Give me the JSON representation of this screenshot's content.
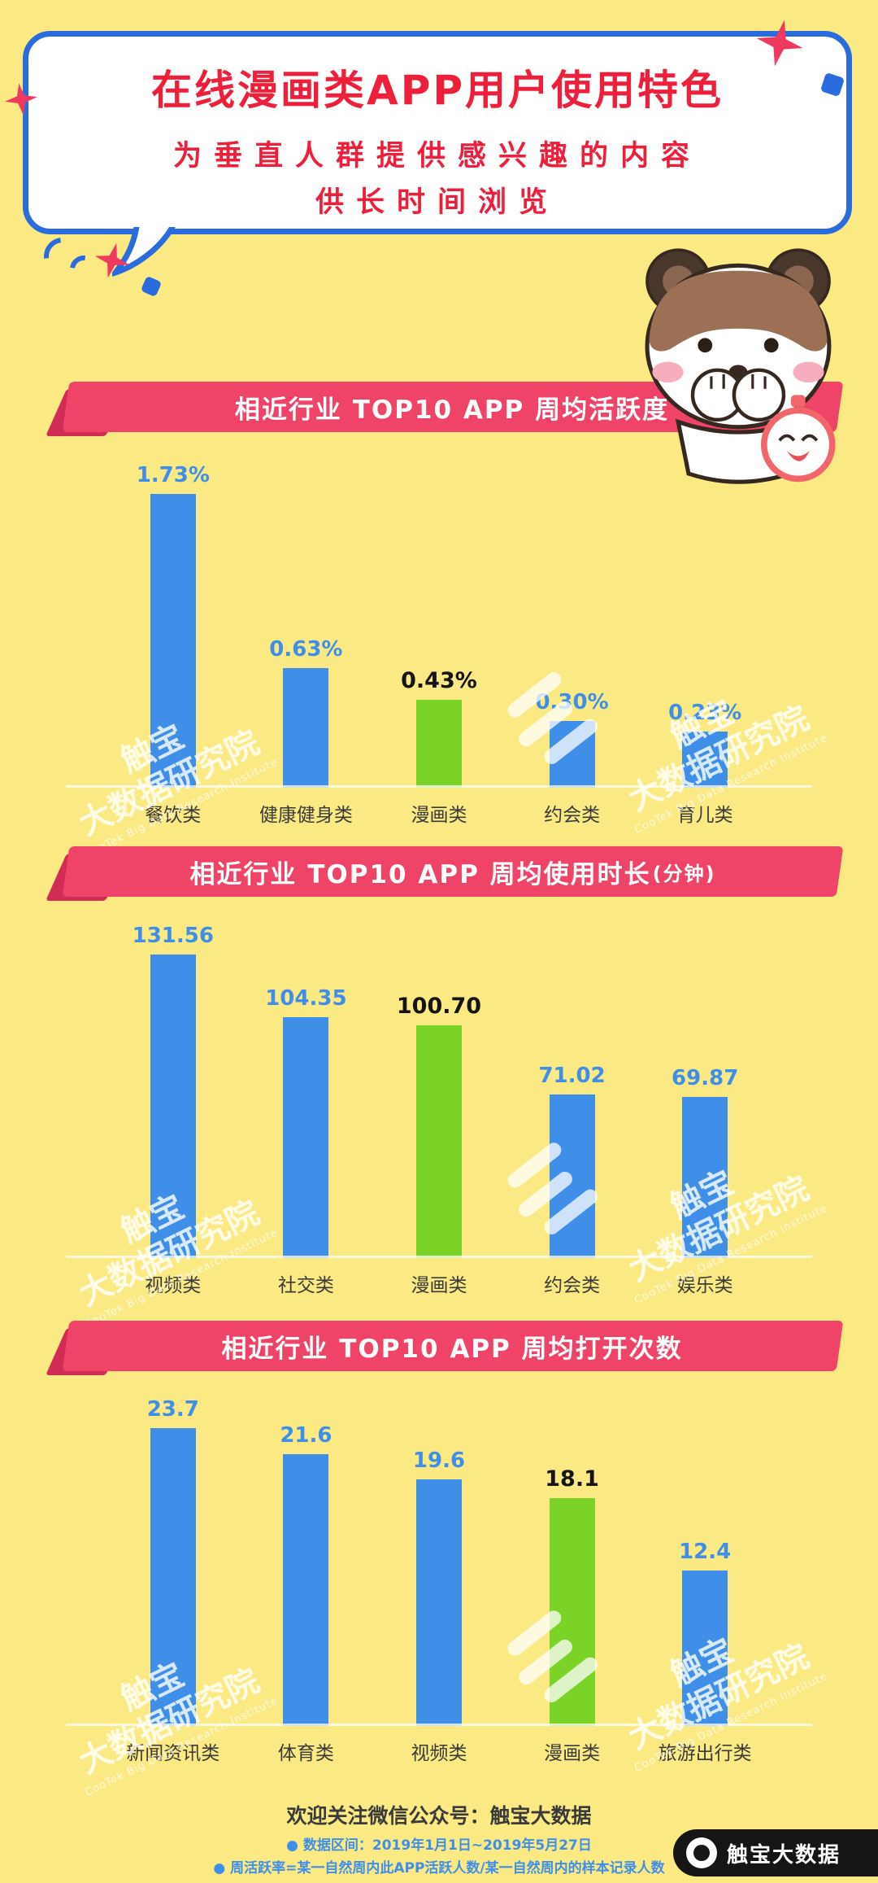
{
  "colors": {
    "background": "#FBEA84",
    "bar_blue": "#3F8FE8",
    "bar_green": "#7BD327",
    "banner_pink": "#EF4368",
    "banner_fold": "#D02C56",
    "title_red": "#ED1F3B",
    "bubble_border_blue": "#2A6CDE",
    "note_blue": "#3F8FE8",
    "badge_black": "#151515"
  },
  "icons": {
    "sparkle_star": "four-point-star",
    "sparkle_square": "tilted-square",
    "mascot": "raccoon-panda-covering-mouth-with-clock",
    "brand_logo": "cootek-circle",
    "watermark_logo": "three-slashes"
  },
  "header": {
    "title": "在线漫画类APP用户使用特色",
    "subtitle_line1": "为垂直人群提供感兴趣的内容",
    "subtitle_line2": "供长时间浏览"
  },
  "watermark": {
    "cn_line1": "触宝",
    "cn_line2": "大数据研究院",
    "en": "CooTek Big Data Research Institute"
  },
  "chart_data": [
    {
      "type": "bar",
      "title": "相近行业 TOP10 APP 周均活跃度",
      "title_suffix": "",
      "categories": [
        "餐饮类",
        "健康健身类",
        "漫画类",
        "约会类",
        "育儿类"
      ],
      "values": [
        1.73,
        0.63,
        0.43,
        0.3,
        0.23
      ],
      "value_labels": [
        "1.73%",
        "0.63%",
        "0.43%",
        "0.30%",
        "0.23%"
      ],
      "highlight_index": 2,
      "bar_color": "#3F8FE8",
      "highlight_color": "#7BD327",
      "legend": "off",
      "grid": "off"
    },
    {
      "type": "bar",
      "title": "相近行业 TOP10 APP 周均使用时长",
      "title_suffix": "(分钟)",
      "categories": [
        "视频类",
        "社交类",
        "漫画类",
        "约会类",
        "娱乐类"
      ],
      "values": [
        131.56,
        104.35,
        100.7,
        71.02,
        69.87
      ],
      "value_labels": [
        "131.56",
        "104.35",
        "100.70",
        "71.02",
        "69.87"
      ],
      "highlight_index": 2,
      "bar_color": "#3F8FE8",
      "highlight_color": "#7BD327",
      "legend": "off",
      "grid": "off"
    },
    {
      "type": "bar",
      "title": "相近行业 TOP10 APP 周均打开次数",
      "title_suffix": "",
      "categories": [
        "新闻资讯类",
        "体育类",
        "视频类",
        "漫画类",
        "旅游出行类"
      ],
      "values": [
        23.7,
        21.6,
        19.6,
        18.1,
        12.4
      ],
      "value_labels": [
        "23.7",
        "21.6",
        "19.6",
        "18.1",
        "12.4"
      ],
      "highlight_index": 3,
      "bar_color": "#3F8FE8",
      "highlight_color": "#7BD327",
      "legend": "off",
      "grid": "off"
    }
  ],
  "footer": {
    "wechat_line": "欢迎关注微信公众号：触宝大数据",
    "bullet": "●",
    "note1": "数据区间：2019年1月1日~2019年5月27日",
    "note2": "周活跃率=某一自然周内此APP活跃人数/某一自然周内的样本记录人数",
    "brand_badge": "触宝大数据"
  }
}
